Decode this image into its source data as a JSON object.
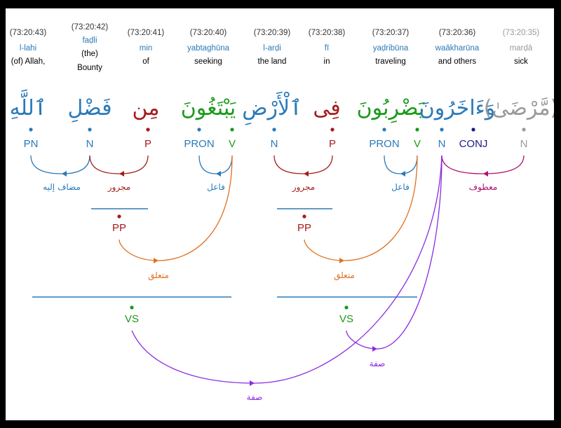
{
  "words": [
    {
      "loc": "(73:20:43)",
      "translit": "l-lahi",
      "gloss": [
        "(of) Allah,"
      ],
      "arabic": "ٱللَّهِ",
      "color": "#2a7ab8",
      "faded": false
    },
    {
      "loc": "(73:20:42)",
      "translit": "faḍli",
      "gloss": [
        "(the)",
        "Bounty"
      ],
      "arabic": "فَضْلِ",
      "color": "#2a7ab8",
      "faded": false
    },
    {
      "loc": "(73:20:41)",
      "translit": "min",
      "gloss": [
        "of"
      ],
      "arabic": "مِن",
      "color": "#a51c1c",
      "faded": false
    },
    {
      "loc": "(73:20:40)",
      "translit": "yabtaghūna",
      "gloss": [
        "seeking"
      ],
      "arabic": "يَبْتَغُونَ",
      "color": "#1a9a1a",
      "faded": false
    },
    {
      "loc": "(73:20:39)",
      "translit": "l-arḍi",
      "gloss": [
        "the land"
      ],
      "arabic": "ٱلْأَرْضِ",
      "color": "#2a7ab8",
      "faded": false
    },
    {
      "loc": "(73:20:38)",
      "translit": "fī",
      "gloss": [
        "in"
      ],
      "arabic": "فِى",
      "color": "#a51c1c",
      "faded": false
    },
    {
      "loc": "(73:20:37)",
      "translit": "yaḍribūna",
      "gloss": [
        "traveling"
      ],
      "arabic": "يَضْرِبُونَ",
      "color": "#1a9a1a",
      "faded": false
    },
    {
      "loc": "(73:20:36)",
      "translit": "waākharūna",
      "gloss": [
        "and others"
      ],
      "arabic": "وَءَاخَرُونَ",
      "color": "#2a7ab8",
      "faded": false
    },
    {
      "loc": "(73:20:35)",
      "translit": "marḍā",
      "gloss": [
        "sick"
      ],
      "arabic": "(مَّرْضَىٰ)",
      "color": "#9a9a9a",
      "faded": true
    }
  ],
  "tags": [
    {
      "text": "PN",
      "color": "#2a7ab8"
    },
    {
      "text": "N",
      "color": "#2a7ab8"
    },
    {
      "text": "P",
      "color": "#a51c1c"
    },
    {
      "text": "PRON",
      "color": "#2a7ab8"
    },
    {
      "text": "V",
      "color": "#1a9a1a"
    },
    {
      "text": "N",
      "color": "#2a7ab8"
    },
    {
      "text": "P",
      "color": "#a51c1c"
    },
    {
      "text": "PRON",
      "color": "#2a7ab8"
    },
    {
      "text": "V",
      "color": "#1a9a1a"
    },
    {
      "text": "N",
      "color": "#2a7ab8"
    },
    {
      "text": "CONJ",
      "color": "#1a1a8a"
    },
    {
      "text": "N",
      "color": "#9a9a9a"
    }
  ],
  "phrases": [
    {
      "text": "PP",
      "color": "#a51c1c"
    },
    {
      "text": "PP",
      "color": "#a51c1c"
    },
    {
      "text": "VS",
      "color": "#1a9a1a"
    },
    {
      "text": "VS",
      "color": "#1a9a1a"
    }
  ],
  "relations": [
    {
      "label": "مضاف إليه",
      "color": "#2a7ab8"
    },
    {
      "label": "مجرور",
      "color": "#a51c1c"
    },
    {
      "label": "فاعل",
      "color": "#2a7ab8"
    },
    {
      "label": "مجرور",
      "color": "#a51c1c"
    },
    {
      "label": "فاعل",
      "color": "#2a7ab8"
    },
    {
      "label": "معطوف",
      "color": "#b01070"
    },
    {
      "label": "متعلق",
      "color": "#e07020"
    },
    {
      "label": "متعلق",
      "color": "#e07020"
    },
    {
      "label": "صفة",
      "color": "#8a2be2"
    },
    {
      "label": "صفة",
      "color": "#8a2be2"
    }
  ],
  "colors": {
    "noun": "#2a7ab8",
    "prep": "#a51c1c",
    "verb": "#1a9a1a",
    "conj": "#1a1a8a",
    "faded": "#9a9a9a",
    "coord": "#b01070",
    "attach": "#e07020",
    "adjective": "#8a2be2",
    "line": "#2a7ab8"
  }
}
